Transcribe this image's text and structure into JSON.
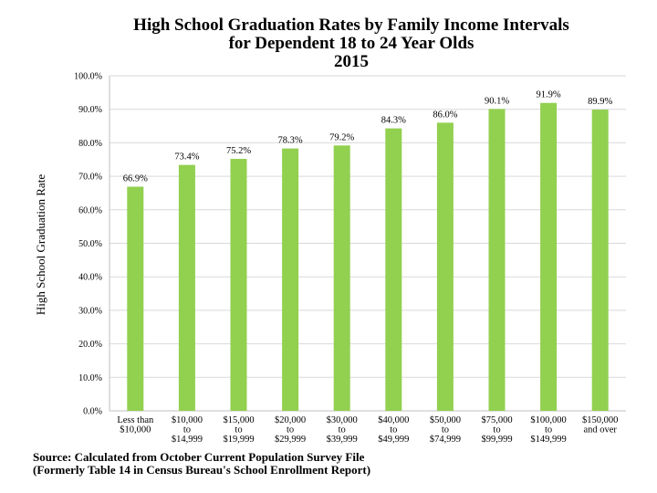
{
  "chart_data": {
    "type": "bar",
    "title": "High School Graduation Rates by Family Income Intervals",
    "subtitle": "for Dependent 18 to 24 Year Olds",
    "year": "2015",
    "ylabel": "High School Graduation Rate",
    "xlabel": "",
    "ylim": [
      0,
      100
    ],
    "yticks": [
      "0.0%",
      "10.0%",
      "20.0%",
      "30.0%",
      "40.0%",
      "50.0%",
      "60.0%",
      "70.0%",
      "80.0%",
      "90.0%",
      "100.0%"
    ],
    "categories": [
      [
        "Less than",
        "$10,000"
      ],
      [
        "$10,000",
        "to",
        "$14,999"
      ],
      [
        "$15,000",
        "to",
        "$19,999"
      ],
      [
        "$20,000",
        "to",
        "$29,999"
      ],
      [
        "$30,000",
        "to",
        "$39,999"
      ],
      [
        "$40,000",
        "to",
        "$49,999"
      ],
      [
        "$50,000",
        "to",
        "$74,999"
      ],
      [
        "$75,000",
        "to",
        "$99,999"
      ],
      [
        "$100,000",
        "to",
        "$149,999"
      ],
      [
        "$150,000",
        "and over"
      ]
    ],
    "values": [
      66.9,
      73.4,
      75.2,
      78.3,
      79.2,
      84.3,
      86.0,
      90.1,
      91.9,
      89.9
    ],
    "data_labels": [
      "66.9%",
      "73.4%",
      "75.2%",
      "78.3%",
      "79.2%",
      "84.3%",
      "86.0%",
      "90.1%",
      "91.9%",
      "89.9%"
    ],
    "bar_color": "#92d050",
    "grid": true,
    "legend": "none"
  },
  "source": {
    "line1": "Source: Calculated from October Current Population Survey File",
    "line2": "(Formerly Table 14 in Census Bureau's School Enrollment Report)"
  }
}
